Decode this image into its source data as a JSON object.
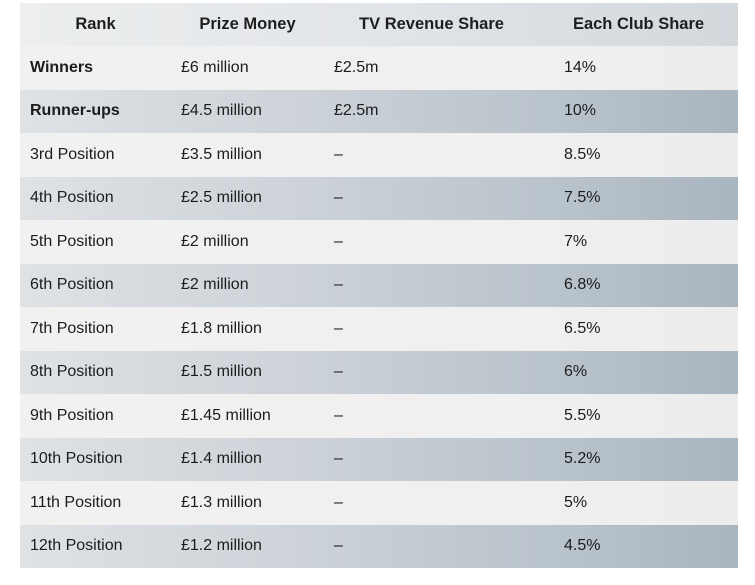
{
  "table": {
    "headers": [
      "Rank",
      "Prize Money",
      "TV Revenue Share",
      "Each Club Share"
    ],
    "rows": [
      {
        "rank": "Winners",
        "prize": "£6 million",
        "tv": "£2.5m",
        "share": "14%",
        "bold": true
      },
      {
        "rank": "Runner-ups",
        "prize": "£4.5 million",
        "tv": "£2.5m",
        "share": "10%",
        "bold": true
      },
      {
        "rank": "3rd Position",
        "prize": "£3.5 million",
        "tv": "–",
        "share": "8.5%",
        "bold": false
      },
      {
        "rank": "4th Position",
        "prize": "£2.5 million",
        "tv": "–",
        "share": "7.5%",
        "bold": false
      },
      {
        "rank": "5th Position",
        "prize": "£2 million",
        "tv": "–",
        "share": "7%",
        "bold": false
      },
      {
        "rank": "6th Position",
        "prize": "£2 million",
        "tv": "–",
        "share": "6.8%",
        "bold": false
      },
      {
        "rank": "7th Position",
        "prize": "£1.8 million",
        "tv": "–",
        "share": "6.5%",
        "bold": false
      },
      {
        "rank": "8th Position",
        "prize": "£1.5 million",
        "tv": "–",
        "share": "6%",
        "bold": false
      },
      {
        "rank": "9th Position",
        "prize": "£1.45 million",
        "tv": "–",
        "share": "5.5%",
        "bold": false
      },
      {
        "rank": "10th Position",
        "prize": "£1.4 million",
        "tv": "–",
        "share": "5.2%",
        "bold": false
      },
      {
        "rank": "11th Position",
        "prize": "£1.3 million",
        "tv": "–",
        "share": "5%",
        "bold": false
      },
      {
        "rank": "12th Position",
        "prize": "£1.2 million",
        "tv": "–",
        "share": "4.5%",
        "bold": false
      }
    ]
  }
}
